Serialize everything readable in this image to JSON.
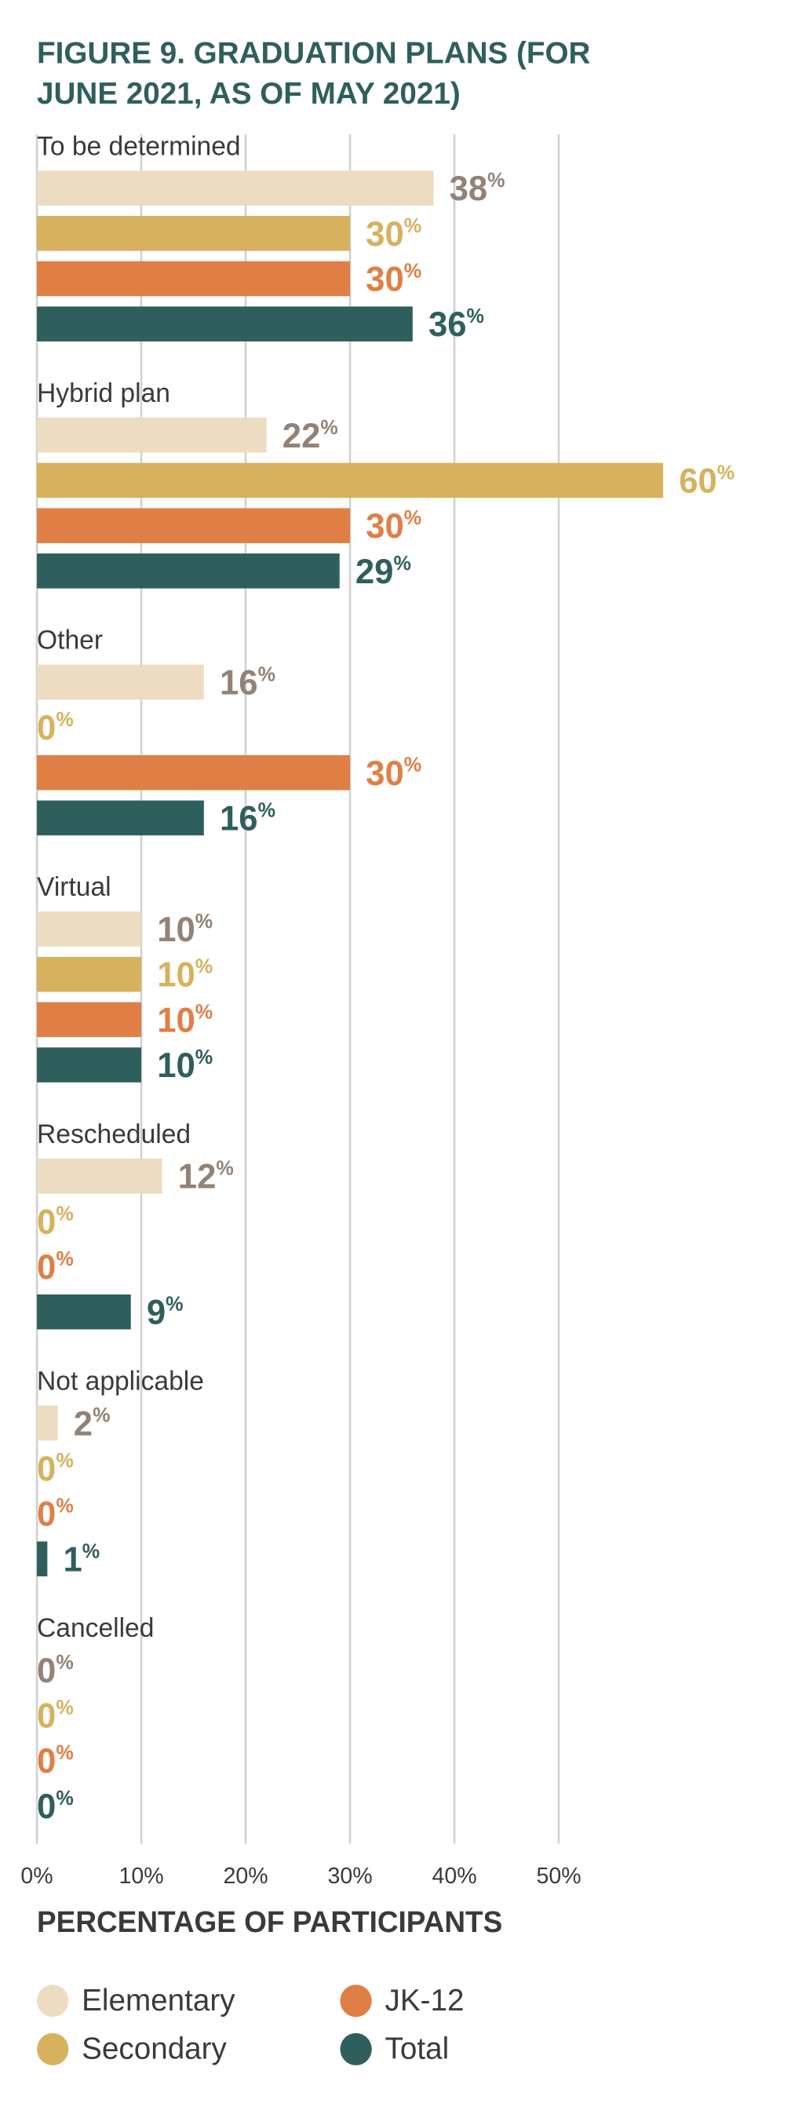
{
  "chart_data": {
    "type": "bar",
    "orientation": "horizontal",
    "title": [
      "FIGURE 9. GRADUATION PLANS (FOR",
      "JUNE 2021, AS OF MAY 2021)"
    ],
    "xlabel": "PERCENTAGE OF PARTICIPANTS",
    "categories": [
      "To be determined",
      "Hybrid plan",
      "Other",
      "Virtual",
      "Rescheduled",
      "Not applicable",
      "Cancelled"
    ],
    "series": [
      {
        "name": "Elementary",
        "color": "#ecdcc2",
        "label_color": "#938275",
        "values": [
          38,
          22,
          16,
          10,
          12,
          2,
          0
        ],
        "value_labels": [
          "38%",
          "22%",
          "16%",
          "10%",
          "12%",
          "2%",
          "0%"
        ]
      },
      {
        "name": "Secondary",
        "color": "#d6b25e",
        "label_color": "#d6b25e",
        "values": [
          30,
          60,
          0,
          10,
          0,
          0,
          0
        ],
        "value_labels": [
          "30%",
          "60%",
          "0%",
          "10%",
          "0%",
          "0%",
          "0%"
        ]
      },
      {
        "name": "JK-12",
        "color": "#e07f45",
        "label_color": "#e07f45",
        "values": [
          30,
          30,
          30,
          10,
          0,
          0,
          0
        ],
        "value_labels": [
          "30%",
          "30%",
          "30%",
          "10%",
          "0%",
          "0%",
          "0%"
        ]
      },
      {
        "name": "Total",
        "color": "#2f5f5c",
        "label_color": "#2f5f5c",
        "values": [
          36,
          29,
          16,
          10,
          9,
          1,
          0
        ],
        "value_labels": [
          "36%",
          "29%",
          "16%",
          "10%",
          "9%",
          "1%",
          "0%"
        ]
      }
    ],
    "xlim": [
      0,
      60
    ],
    "xticks": [
      {
        "value": 0,
        "label": "0%"
      },
      {
        "value": 10,
        "label": "10%"
      },
      {
        "value": 20,
        "label": "20%"
      },
      {
        "value": 30,
        "label": "30%"
      },
      {
        "value": 40,
        "label": "40%"
      },
      {
        "value": 50,
        "label": "50%"
      }
    ],
    "grid": true,
    "legend": "bottom"
  }
}
